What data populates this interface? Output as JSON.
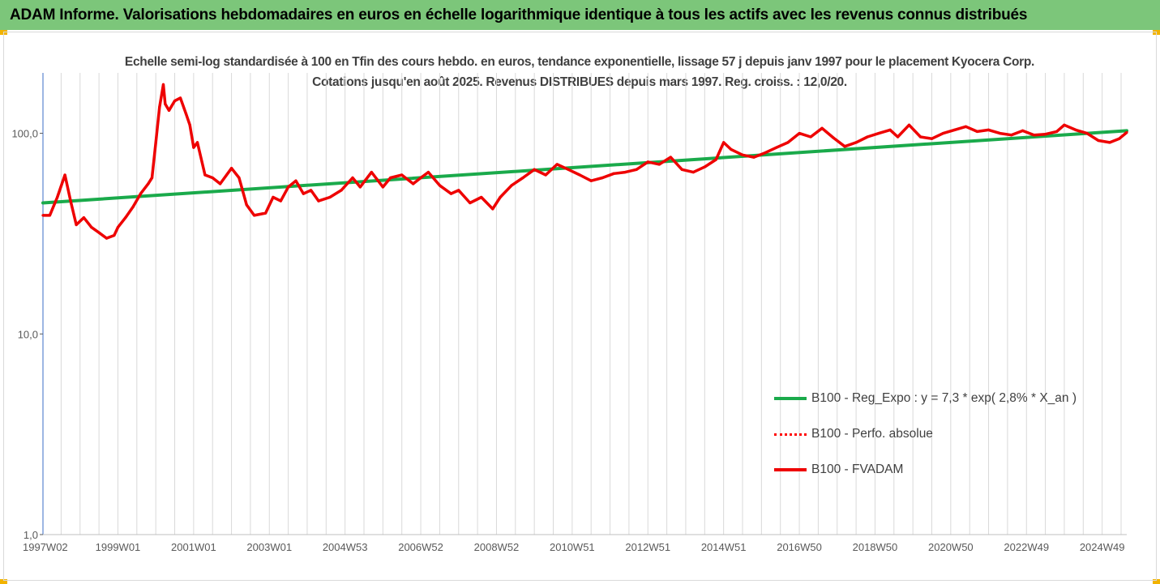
{
  "header": {
    "title": "ADAM Informe. Valorisations hebdomadaires en euros en échelle logarithmique identique à tous les actifs avec les revenus connus distribués"
  },
  "colors": {
    "header_bg": "#7cc67a",
    "corner_accent": "#f2b300",
    "trend_line": "#1aaa4b",
    "perf_line": "#ff0000",
    "fvadam_line": "#ee0000",
    "grid": "#d9d9d9"
  },
  "chart_data": {
    "type": "line",
    "title": "Echelle semi-log standardisée à 100 en Tfin des cours hebdo. en euros, tendance exponentielle, lissage 57 j depuis janv 1997 pour le placement Kyocera Corp. Cotations jusqu'en août 2025. Revenus DISTRIBUES depuis mars 1997. Reg. croiss. : 12,0/20.",
    "y_scale": "log",
    "ylim": [
      1,
      200
    ],
    "y_ticks": [
      {
        "value": 1,
        "label": "1,0"
      },
      {
        "value": 10,
        "label": "10,0"
      },
      {
        "value": 100,
        "label": "100,0"
      }
    ],
    "xlim": [
      1997.02,
      2025.65
    ],
    "x_ticks": [
      {
        "x": 1997.02,
        "label": "1997W02"
      },
      {
        "x": 1999.0,
        "label": "1999W01"
      },
      {
        "x": 2001.0,
        "label": "2001W01"
      },
      {
        "x": 2003.0,
        "label": "2003W01"
      },
      {
        "x": 2005.0,
        "label": "2004W53"
      },
      {
        "x": 2007.0,
        "label": "2006W52"
      },
      {
        "x": 2009.0,
        "label": "2008W52"
      },
      {
        "x": 2011.0,
        "label": "2010W51"
      },
      {
        "x": 2013.0,
        "label": "2012W51"
      },
      {
        "x": 2015.0,
        "label": "2014W51"
      },
      {
        "x": 2017.0,
        "label": "2016W50"
      },
      {
        "x": 2019.0,
        "label": "2018W50"
      },
      {
        "x": 2021.0,
        "label": "2020W50"
      },
      {
        "x": 2023.0,
        "label": "2022W49"
      },
      {
        "x": 2025.0,
        "label": "2024W49"
      }
    ],
    "legend": {
      "placement": "lower-right",
      "entries": [
        {
          "label": "B100 - Reg_Expo : y = 7,3 * exp( 2,8% *  X_an )",
          "style": "solid",
          "color_key": "trend_line"
        },
        {
          "label": "B100 - Perfo. absolue",
          "style": "dotted",
          "color_key": "perf_line"
        },
        {
          "label": "B100 - FVADAM",
          "style": "solid",
          "color_key": "fvadam_line"
        }
      ]
    },
    "series": [
      {
        "name": "B100 - Reg_Expo : y = 7,3 * exp( 2,8% *  X_an )",
        "kind": "trend",
        "x": [
          1997.02,
          2025.65
        ],
        "y": [
          45,
          103
        ]
      },
      {
        "name": "B100 - FVADAM",
        "kind": "price",
        "x": [
          1997.02,
          1997.2,
          1997.4,
          1997.6,
          1997.75,
          1997.9,
          1998.1,
          1998.3,
          1998.5,
          1998.7,
          1998.9,
          1999.0,
          1999.2,
          1999.4,
          1999.6,
          1999.8,
          1999.9,
          2000.0,
          2000.1,
          2000.2,
          2000.25,
          2000.35,
          2000.5,
          2000.65,
          2000.8,
          2000.9,
          2001.0,
          2001.1,
          2001.3,
          2001.5,
          2001.7,
          2002.0,
          2002.2,
          2002.4,
          2002.6,
          2002.9,
          2003.1,
          2003.3,
          2003.5,
          2003.7,
          2003.9,
          2004.1,
          2004.3,
          2004.6,
          2004.9,
          2005.2,
          2005.4,
          2005.7,
          2006.0,
          2006.2,
          2006.5,
          2006.8,
          2007.0,
          2007.2,
          2007.5,
          2007.8,
          2008.0,
          2008.3,
          2008.6,
          2008.9,
          2009.1,
          2009.4,
          2009.7,
          2010.0,
          2010.3,
          2010.6,
          2010.9,
          2011.2,
          2011.5,
          2011.8,
          2012.1,
          2012.4,
          2012.7,
          2013.0,
          2013.3,
          2013.6,
          2013.9,
          2014.2,
          2014.5,
          2014.8,
          2015.0,
          2015.2,
          2015.5,
          2015.8,
          2016.1,
          2016.4,
          2016.7,
          2017.0,
          2017.3,
          2017.6,
          2017.9,
          2018.2,
          2018.5,
          2018.8,
          2019.1,
          2019.4,
          2019.6,
          2019.9,
          2020.2,
          2020.5,
          2020.8,
          2021.1,
          2021.4,
          2021.7,
          2022.0,
          2022.3,
          2022.6,
          2022.9,
          2023.2,
          2023.5,
          2023.8,
          2024.0,
          2024.3,
          2024.6,
          2024.9,
          2025.2,
          2025.45,
          2025.65
        ],
        "y": [
          39,
          39,
          48,
          62,
          46,
          35,
          38,
          34,
          32,
          30,
          31,
          34,
          38,
          43,
          50,
          56,
          60,
          90,
          135,
          175,
          140,
          130,
          145,
          150,
          125,
          110,
          85,
          90,
          62,
          60,
          56,
          67,
          60,
          44,
          39,
          40,
          48,
          46,
          54,
          58,
          50,
          52,
          46,
          48,
          52,
          60,
          54,
          64,
          54,
          60,
          62,
          56,
          60,
          64,
          55,
          50,
          52,
          45,
          48,
          42,
          48,
          55,
          60,
          66,
          62,
          70,
          66,
          62,
          58,
          60,
          63,
          64,
          66,
          72,
          70,
          76,
          66,
          64,
          68,
          74,
          90,
          83,
          78,
          76,
          80,
          85,
          90,
          100,
          96,
          106,
          95,
          86,
          90,
          96,
          100,
          104,
          96,
          110,
          96,
          94,
          100,
          104,
          108,
          102,
          104,
          100,
          98,
          103,
          98,
          99,
          102,
          110,
          104,
          100,
          92,
          90,
          94,
          101
        ]
      }
    ]
  }
}
